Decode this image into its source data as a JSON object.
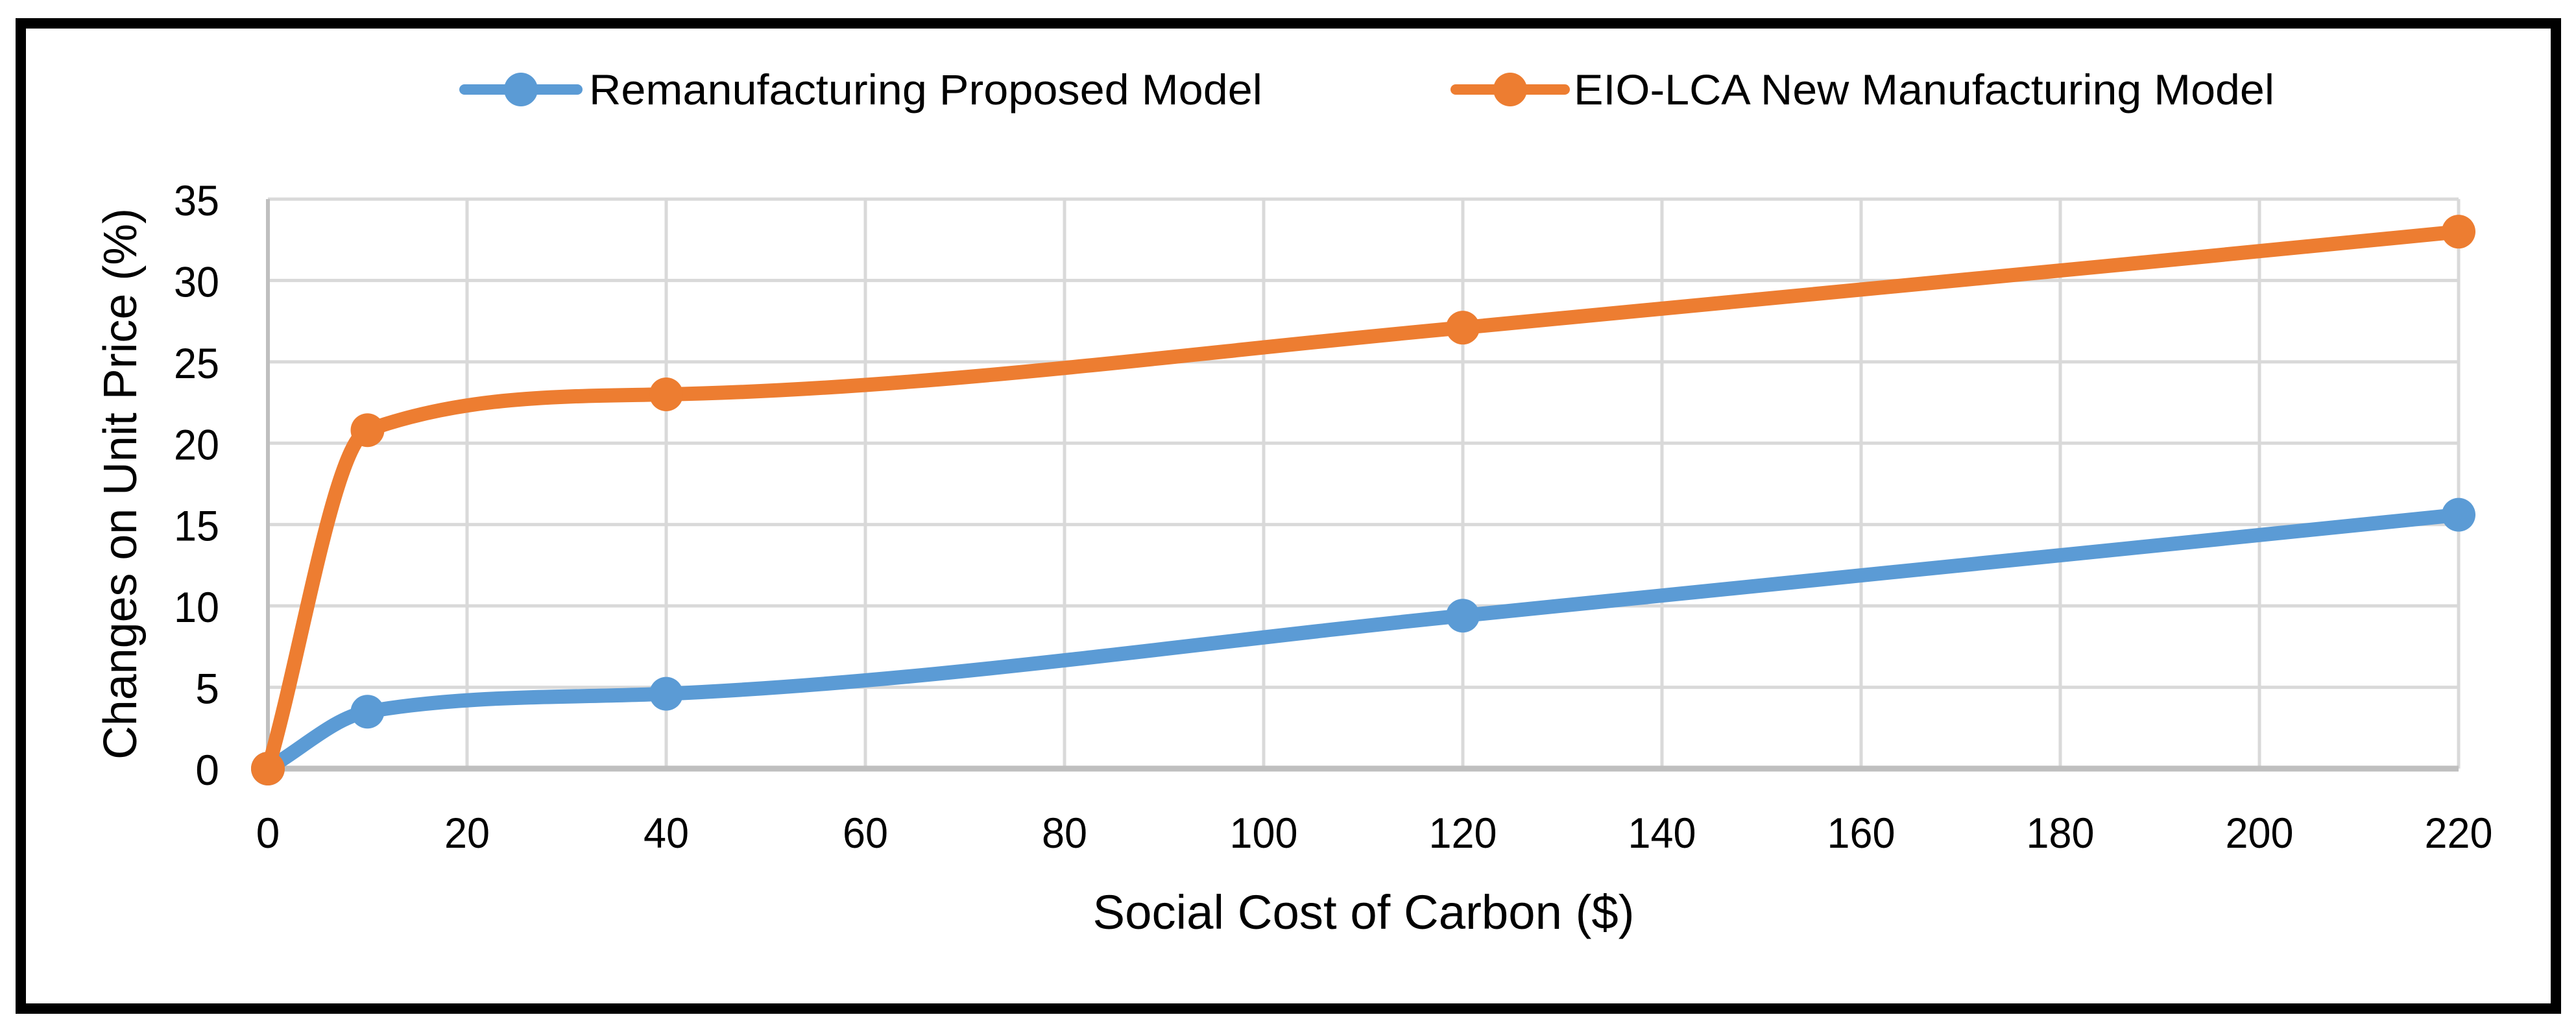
{
  "chart_data": {
    "type": "line",
    "title": "",
    "xlabel": "Social Cost of Carbon ($)",
    "ylabel": "Changes on Unit Price (%)",
    "xlim": [
      0,
      220
    ],
    "ylim": [
      0,
      35
    ],
    "x_ticks": [
      0,
      20,
      40,
      60,
      80,
      100,
      120,
      140,
      160,
      180,
      200,
      220
    ],
    "y_ticks": [
      0,
      5,
      10,
      15,
      20,
      25,
      30,
      35
    ],
    "grid": true,
    "smooth": true,
    "marker": "circle",
    "legend_position": "top",
    "series": [
      {
        "name": "Remanufacturing Proposed Model",
        "color": "#5B9BD5",
        "x": [
          0,
          10,
          40,
          120,
          220
        ],
        "y": [
          0,
          3.5,
          4.6,
          9.4,
          15.6
        ]
      },
      {
        "name": "EIO-LCA New Manufacturing Model",
        "color": "#ED7D31",
        "x": [
          0,
          10,
          40,
          120,
          220
        ],
        "y": [
          0,
          20.8,
          23.0,
          27.1,
          33.0
        ]
      }
    ]
  },
  "colors": {
    "background": "#FFFFFF",
    "frame_border": "#000000",
    "gridline": "#D9D9D9",
    "axis_line": "#BFBFBF",
    "text": "#000000",
    "series_blue": "#5B9BD5",
    "series_orange": "#ED7D31"
  }
}
